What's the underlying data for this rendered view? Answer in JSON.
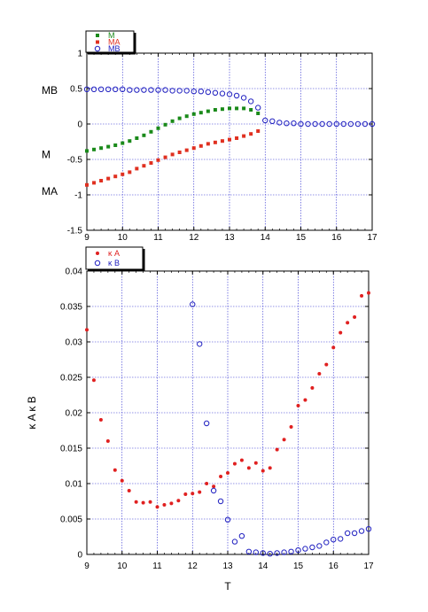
{
  "chart_data": [
    {
      "type": "scatter",
      "xlim": [
        9,
        17
      ],
      "ylim": [
        -1.5,
        1
      ],
      "xticks": [
        "9",
        "10",
        "11",
        "12",
        "13",
        "14",
        "15",
        "16",
        "17"
      ],
      "yticks": [
        "1",
        "0.5",
        "0",
        "-0.5",
        "-1",
        "-1.5"
      ],
      "grid": true,
      "legend_position": "top-left",
      "side_labels": [
        {
          "text": "MB",
          "y": 0.49
        },
        {
          "text": "M",
          "y": -0.42
        },
        {
          "text": "MA",
          "y": -0.94
        }
      ],
      "series": [
        {
          "name": "M",
          "color": "#1a8a1a",
          "marker": "square",
          "x": [
            9.0,
            9.2,
            9.4,
            9.6,
            9.8,
            10.0,
            10.2,
            10.4,
            10.6,
            10.8,
            11.0,
            11.2,
            11.4,
            11.6,
            11.8,
            12.0,
            12.2,
            12.4,
            12.6,
            12.8,
            13.0,
            13.2,
            13.4,
            13.6,
            13.8
          ],
          "y": [
            -0.38,
            -0.36,
            -0.34,
            -0.32,
            -0.3,
            -0.27,
            -0.24,
            -0.2,
            -0.16,
            -0.11,
            -0.06,
            -0.01,
            0.04,
            0.08,
            0.11,
            0.14,
            0.16,
            0.18,
            0.2,
            0.21,
            0.22,
            0.22,
            0.22,
            0.2,
            0.15
          ]
        },
        {
          "name": "MA",
          "color": "#e03020",
          "marker": "square",
          "x": [
            9.0,
            9.2,
            9.4,
            9.6,
            9.8,
            10.0,
            10.2,
            10.4,
            10.6,
            10.8,
            11.0,
            11.2,
            11.4,
            11.6,
            11.8,
            12.0,
            12.2,
            12.4,
            12.6,
            12.8,
            13.0,
            13.2,
            13.4,
            13.6,
            13.8
          ],
          "y": [
            -0.86,
            -0.83,
            -0.8,
            -0.77,
            -0.74,
            -0.71,
            -0.68,
            -0.63,
            -0.59,
            -0.55,
            -0.51,
            -0.47,
            -0.43,
            -0.4,
            -0.37,
            -0.34,
            -0.31,
            -0.28,
            -0.26,
            -0.24,
            -0.22,
            -0.2,
            -0.17,
            -0.14,
            -0.1
          ]
        },
        {
          "name": "MB",
          "color": "#2020c0",
          "marker": "open-circle",
          "x": [
            9.0,
            9.2,
            9.4,
            9.6,
            9.8,
            10.0,
            10.2,
            10.4,
            10.6,
            10.8,
            11.0,
            11.2,
            11.4,
            11.6,
            11.8,
            12.0,
            12.2,
            12.4,
            12.6,
            12.8,
            13.0,
            13.2,
            13.4,
            13.6,
            13.8,
            14.0,
            14.2,
            14.4,
            14.6,
            14.8,
            15.0,
            15.2,
            15.4,
            15.6,
            15.8,
            16.0,
            16.2,
            16.4,
            16.6,
            16.8,
            17.0
          ],
          "y": [
            0.49,
            0.49,
            0.49,
            0.49,
            0.49,
            0.49,
            0.48,
            0.48,
            0.48,
            0.48,
            0.48,
            0.48,
            0.47,
            0.47,
            0.47,
            0.46,
            0.46,
            0.45,
            0.44,
            0.43,
            0.42,
            0.4,
            0.37,
            0.32,
            0.23,
            0.05,
            0.04,
            0.02,
            0.01,
            0.01,
            0.0,
            0.0,
            0.0,
            0.0,
            0.0,
            0.0,
            0.0,
            0.0,
            0.0,
            0.0,
            0.0
          ]
        }
      ]
    },
    {
      "type": "scatter",
      "xlim": [
        9,
        17
      ],
      "ylim": [
        0,
        0.04
      ],
      "xlabel": "T",
      "ylabel": "κ A κ B",
      "xticks": [
        "9",
        "10",
        "11",
        "12",
        "13",
        "14",
        "15",
        "16",
        "17"
      ],
      "yticks": [
        "0.04",
        "0.035",
        "0.03",
        "0.025",
        "0.02",
        "0.015",
        "0.01",
        "0.005",
        "0"
      ],
      "grid": true,
      "legend_position": "top-left",
      "series": [
        {
          "name": "κ A",
          "color": "#e02020",
          "marker": "filled-circle",
          "x": [
            9.0,
            9.2,
            9.4,
            9.6,
            9.8,
            10.0,
            10.2,
            10.4,
            10.6,
            10.8,
            11.0,
            11.2,
            11.4,
            11.6,
            11.8,
            12.0,
            12.2,
            12.4,
            12.6,
            12.8,
            13.0,
            13.2,
            13.4,
            13.6,
            13.8,
            14.0,
            14.2,
            14.4,
            14.6,
            14.8,
            15.0,
            15.2,
            15.4,
            15.6,
            15.8,
            16.0,
            16.2,
            16.4,
            16.6,
            16.8,
            17.0
          ],
          "y": [
            0.0317,
            0.0246,
            0.019,
            0.016,
            0.0119,
            0.0104,
            0.009,
            0.0074,
            0.0073,
            0.0074,
            0.0067,
            0.007,
            0.0072,
            0.0076,
            0.0085,
            0.0086,
            0.0088,
            0.01,
            0.0096,
            0.011,
            0.0115,
            0.0128,
            0.0133,
            0.0122,
            0.0129,
            0.0118,
            0.0122,
            0.0148,
            0.0162,
            0.018,
            0.021,
            0.0218,
            0.0235,
            0.0255,
            0.0268,
            0.0292,
            0.0313,
            0.0327,
            0.0335,
            0.0365,
            0.0369
          ]
        },
        {
          "name": "κ B",
          "color": "#2020c0",
          "marker": "open-circle",
          "x": [
            12.0,
            12.2,
            12.4,
            12.6,
            12.8,
            13.0,
            13.2,
            13.4,
            13.6,
            13.8,
            14.0,
            14.2,
            14.4,
            14.6,
            14.8,
            15.0,
            15.2,
            15.4,
            15.6,
            15.8,
            16.0,
            16.2,
            16.4,
            16.6,
            16.8,
            17.0
          ],
          "y": [
            0.0353,
            0.0297,
            0.0185,
            0.009,
            0.0075,
            0.0049,
            0.0018,
            0.0026,
            0.0004,
            0.0003,
            0.0002,
            0.0001,
            0.0002,
            0.0003,
            0.0004,
            0.0006,
            0.0008,
            0.001,
            0.0012,
            0.0017,
            0.0021,
            0.0022,
            0.003,
            0.003,
            0.0033,
            0.0036
          ]
        }
      ]
    }
  ]
}
